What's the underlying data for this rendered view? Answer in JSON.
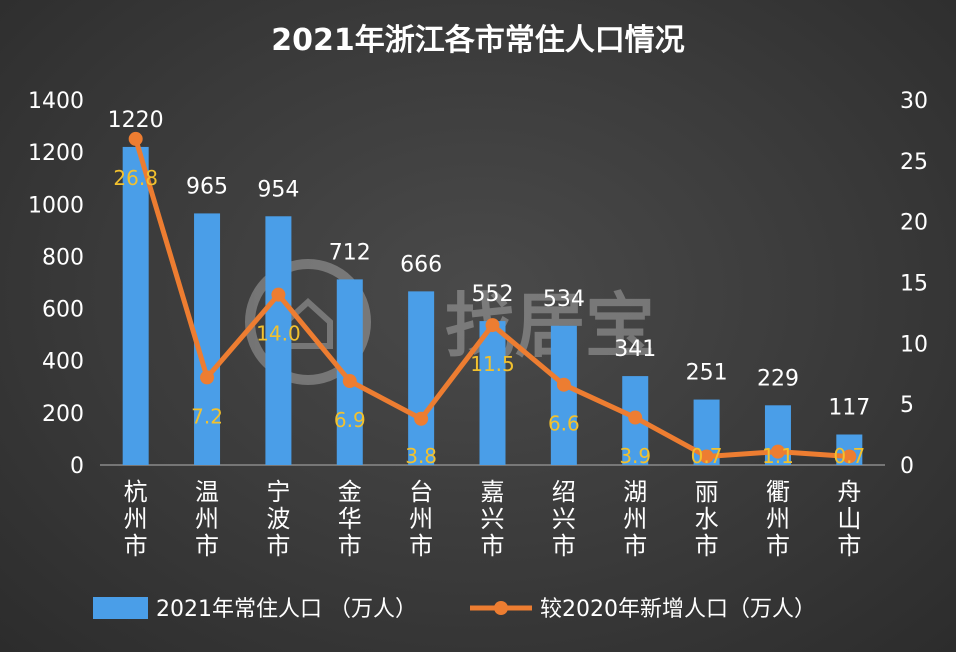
{
  "chart_data": {
    "type": "bar",
    "title": "2021年浙江各市常住人口情况",
    "categories": [
      "杭州市",
      "温州市",
      "宁波市",
      "金华市",
      "台州市",
      "嘉兴市",
      "绍兴市",
      "湖州市",
      "丽水市",
      "衢州市",
      "舟山市"
    ],
    "series": [
      {
        "name": "2021年常住人口 （万人）",
        "type": "bar",
        "axis": "left",
        "color": "#4a9ee8",
        "values": [
          1220,
          965,
          954,
          712,
          666,
          552,
          534,
          341,
          251,
          229,
          117
        ],
        "labels": [
          "1220",
          "965",
          "954",
          "712",
          "666",
          "552",
          "534",
          "341",
          "251",
          "229",
          "117"
        ]
      },
      {
        "name": "较2020年新增人口（万人）",
        "type": "line",
        "axis": "right",
        "color": "#ed7d31",
        "values": [
          26.8,
          7.2,
          14.0,
          6.9,
          3.8,
          11.5,
          6.6,
          3.9,
          0.7,
          1.1,
          0.7
        ],
        "labels": [
          "26.8",
          "7.2",
          "14.0",
          "6.9",
          "3.8",
          "11.5",
          "6.6",
          "3.9",
          "0.7",
          "1.1",
          "0.7"
        ]
      }
    ],
    "y_left": {
      "min": 0,
      "max": 1400,
      "ticks": [
        "0",
        "200",
        "400",
        "600",
        "800",
        "1000",
        "1200",
        "1400"
      ]
    },
    "y_right": {
      "min": 0,
      "max": 30,
      "ticks": [
        "0",
        "5",
        "10",
        "15",
        "20",
        "25",
        "30"
      ]
    },
    "grid": false,
    "legend_position": "bottom",
    "watermark": "找居宝"
  }
}
